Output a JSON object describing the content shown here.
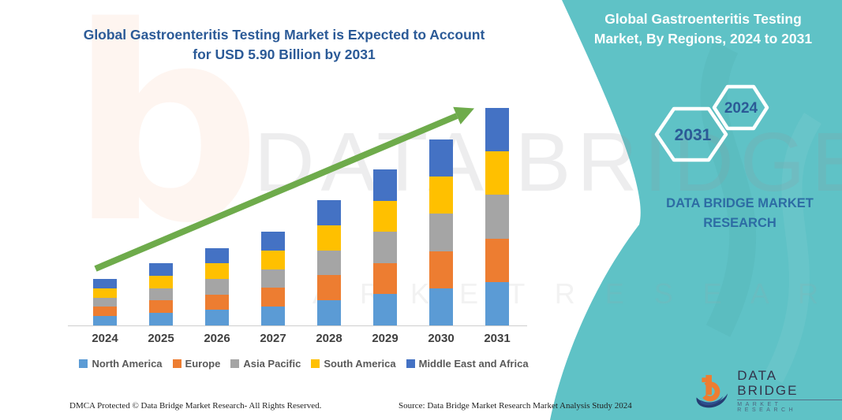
{
  "header": {
    "left_title_line1": "Global Gastroenteritis Testing Market is Expected to Account",
    "left_title_line2": "for USD 5.90 Billion by 2031",
    "panel_title_line1": "Global Gastroenteritis Testing",
    "panel_title_line2": "Market, By Regions, 2024 to 2031"
  },
  "panel": {
    "bg_color": "#5FC2C6",
    "hexagons": [
      {
        "label": "2031"
      },
      {
        "label": "2024"
      }
    ],
    "brand_caption_line1": "DATA BRIDGE MARKET",
    "brand_caption_line2": "RESEARCH"
  },
  "watermark": {
    "glyph": "b",
    "line1": "DATA BRIDGE",
    "line2": "M A R K E T   R E S E A R C H"
  },
  "chart_data": {
    "type": "bar",
    "stacked": true,
    "title": "Global Gastroenteritis Testing Market is Expected to Account for USD 5.90 Billion by 2031",
    "unit": "USD Billion",
    "categories": [
      "2024",
      "2025",
      "2026",
      "2027",
      "2028",
      "2029",
      "2030",
      "2031"
    ],
    "totals_usd_billion": [
      1.26,
      1.69,
      2.1,
      2.54,
      3.4,
      4.23,
      5.05,
      5.9
    ],
    "series": [
      {
        "name": "North America",
        "color": "#5B9BD5",
        "values": [
          0.25,
          0.34,
          0.42,
          0.51,
          0.68,
          0.85,
          1.01,
          1.18
        ]
      },
      {
        "name": "Europe",
        "color": "#ED7D31",
        "values": [
          0.25,
          0.34,
          0.42,
          0.51,
          0.68,
          0.85,
          1.01,
          1.18
        ]
      },
      {
        "name": "Asia Pacific",
        "color": "#A5A5A5",
        "values": [
          0.25,
          0.34,
          0.42,
          0.51,
          0.68,
          0.85,
          1.01,
          1.18
        ]
      },
      {
        "name": "South America",
        "color": "#FFC000",
        "values": [
          0.25,
          0.34,
          0.42,
          0.51,
          0.68,
          0.85,
          1.01,
          1.18
        ]
      },
      {
        "name": "Middle East and Africa",
        "color": "#4472C4",
        "values": [
          0.25,
          0.34,
          0.42,
          0.51,
          0.68,
          0.85,
          1.01,
          1.18
        ]
      }
    ],
    "xlabel": "",
    "ylabel": "",
    "ylim": [
      0,
      6.2
    ],
    "grid": false,
    "legend_position": "bottom",
    "annotations": [
      "green upward trend arrow from 2024 bar to 2031 bar"
    ],
    "arrow_color": "#6EAB4B"
  },
  "footer": {
    "left": "DMCA Protected © Data Bridge Market Research-  All Rights Reserved.",
    "right": "Source: Data Bridge Market Research  Market Analysis Study 2024"
  },
  "logo": {
    "name_line": "DATA BRIDGE",
    "sub_line": "MARKET RESEARCH"
  }
}
